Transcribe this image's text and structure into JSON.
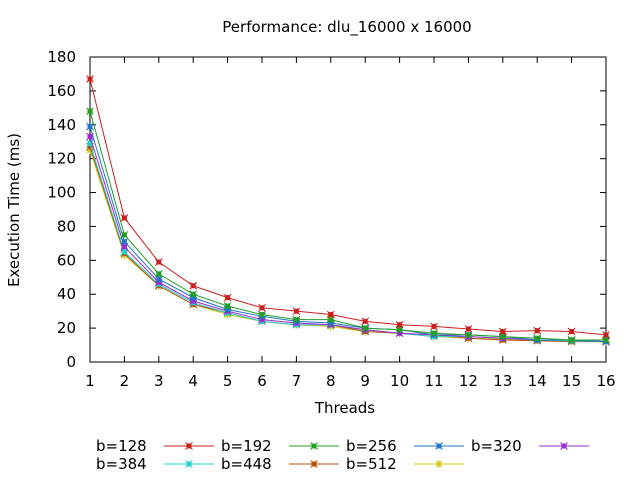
{
  "chart_data": {
    "type": "line",
    "title": "Performance: dlu_16000 x 16000",
    "xlabel": "Threads",
    "ylabel": "Execution Time (ms)",
    "xlim": [
      1,
      16
    ],
    "ylim": [
      0,
      180
    ],
    "x_ticks": [
      1,
      2,
      3,
      4,
      5,
      6,
      7,
      8,
      9,
      10,
      11,
      12,
      13,
      14,
      15,
      16
    ],
    "y_ticks": [
      0,
      20,
      40,
      60,
      80,
      100,
      120,
      140,
      160,
      180
    ],
    "grid": false,
    "legend_position": "bottom",
    "x": [
      1,
      2,
      3,
      4,
      5,
      6,
      7,
      8,
      9,
      10,
      11,
      12,
      13,
      14,
      15,
      16
    ],
    "series": [
      {
        "name": "b=128",
        "color": "#cc1f1f",
        "marker": "x-square",
        "values": [
          167,
          85,
          59,
          45,
          38,
          32,
          30,
          28,
          24,
          22,
          21,
          19.5,
          18,
          18.5,
          18,
          16
        ]
      },
      {
        "name": "b=192",
        "color": "#22a022",
        "marker": "x-square",
        "values": [
          148,
          75,
          52,
          40,
          33,
          28,
          25,
          25,
          20,
          19,
          17,
          16,
          15,
          14,
          13,
          13
        ]
      },
      {
        "name": "b=256",
        "color": "#2277cc",
        "marker": "x-square",
        "values": [
          139,
          71,
          49,
          38,
          31,
          27,
          24,
          23,
          20,
          19,
          16,
          16,
          15,
          13,
          13,
          12
        ]
      },
      {
        "name": "b=320",
        "color": "#9b2bd1",
        "marker": "x-square",
        "values": [
          133,
          68,
          47,
          36,
          30,
          25,
          23,
          22,
          19,
          17,
          16,
          15,
          14,
          13,
          13,
          12
        ]
      },
      {
        "name": "b=384",
        "color": "#22d3d3",
        "marker": "x-square",
        "values": [
          129,
          65,
          46,
          35,
          29,
          24,
          22,
          22,
          19,
          17,
          15,
          15,
          14,
          13,
          12.5,
          12
        ]
      },
      {
        "name": "b=448",
        "color": "#b5530e",
        "marker": "x-square",
        "values": [
          127,
          64,
          45,
          34,
          29,
          24,
          22,
          22,
          18,
          17,
          16,
          14,
          13,
          12.5,
          12,
          12
        ]
      },
      {
        "name": "b=512",
        "color": "#c8c818",
        "marker": "star",
        "values": [
          125,
          63,
          45,
          34,
          28,
          24,
          22,
          21,
          18,
          17,
          15,
          14,
          13.5,
          13,
          12.5,
          12
        ]
      }
    ]
  }
}
